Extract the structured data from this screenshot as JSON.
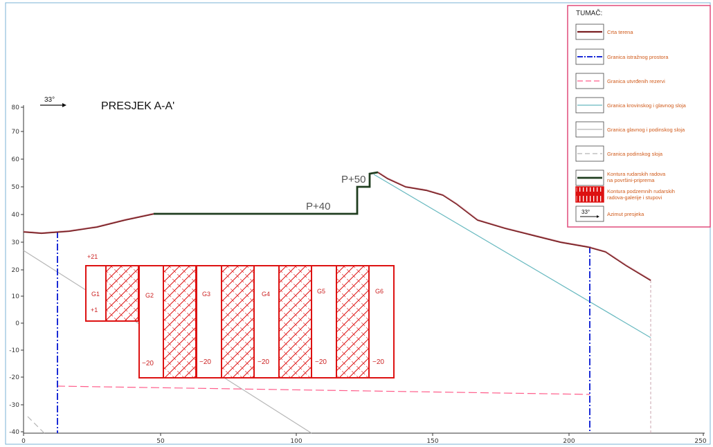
{
  "title": "PRESJEK A-A'",
  "azimuth_label": "33°",
  "axes": {
    "x_ticks": [
      "0",
      "50",
      "100",
      "150",
      "200",
      "250"
    ],
    "y_ticks": [
      "80",
      "70",
      "60",
      "50",
      "40",
      "30",
      "20",
      "10",
      "0",
      "-10",
      "-20",
      "-30",
      "-40"
    ]
  },
  "labels": {
    "p40": "P+40",
    "p50": "P+50",
    "plus21": "+21",
    "plus1": "+1",
    "minus20": "−20"
  },
  "galleries": [
    "G1",
    "G2",
    "G3",
    "G4",
    "G5",
    "G6"
  ],
  "legend": {
    "title": "TUMAČ:",
    "items": [
      {
        "id": "terrain",
        "text": "Crta terena"
      },
      {
        "id": "exploration",
        "text": "Granica istražnog prostora"
      },
      {
        "id": "reserves",
        "text": "Granica utvrđenih rezervi"
      },
      {
        "id": "roof",
        "text": "Granica krovinskog i glavnog sloja"
      },
      {
        "id": "main",
        "text": "Granica glavnog i podinskog sloja"
      },
      {
        "id": "floor",
        "text": "Granica podinskog sloja"
      },
      {
        "id": "surface",
        "text": "Kontura rudarskih radova",
        "text2": "na površini-priprema"
      },
      {
        "id": "underground",
        "text": "Kontura podzemnih rudarskih",
        "text2": "radova-galerije i stupovi"
      },
      {
        "id": "azimuth",
        "text": "Azimut presjeka",
        "symbol": "33°"
      }
    ]
  },
  "colors": {
    "terrain": "#7a1e22",
    "exploration": "#1a2bd6",
    "reserves": "#ff5c8a",
    "roof": "#66b8bf",
    "gray": "#b0b0b0",
    "surface": "#1f3d1f",
    "underground": "#dd1111",
    "legend_border": "#e04a7a"
  }
}
